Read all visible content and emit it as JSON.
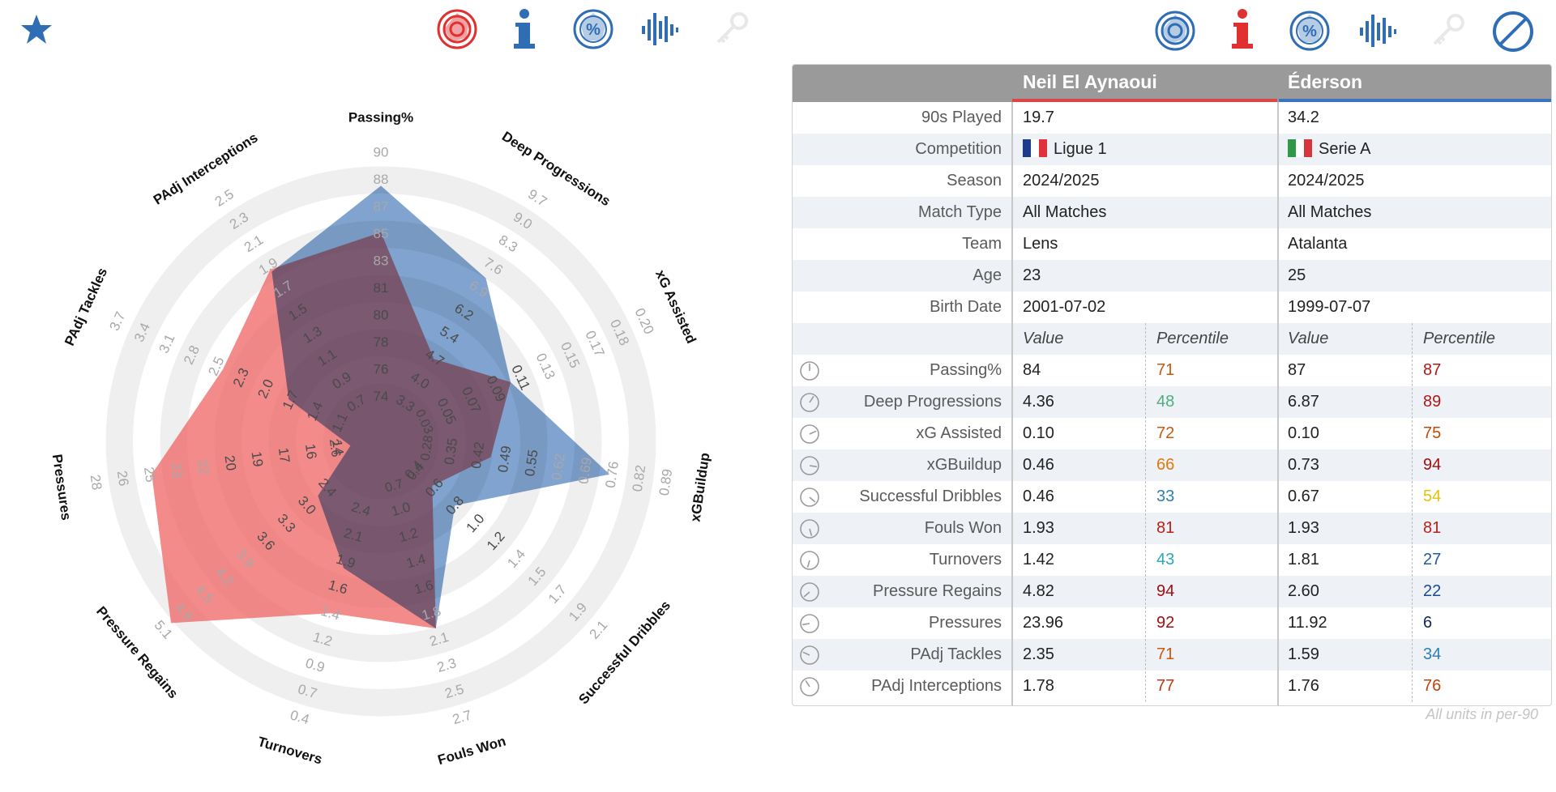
{
  "toolbar": {
    "left": [
      "star-icon",
      "radar-target-icon",
      "info-icon",
      "percent-radar-icon",
      "waveform-icon",
      "key-icon"
    ],
    "right": [
      "radar-target-icon",
      "info-icon",
      "percent-radar-icon",
      "waveform-icon",
      "key-icon",
      "no-entry-icon"
    ]
  },
  "colors": {
    "player1": "#ee5e5e",
    "player2": "#4f7fbd",
    "overlap": "#6f6aa8",
    "header_bg": "#9a9a9a",
    "accent_blue": "#2f6db5",
    "accent_red": "#e03030"
  },
  "table": {
    "players": [
      {
        "name": "Neil El Aynaoui",
        "color": "#e04545"
      },
      {
        "name": "Éderson",
        "color": "#3d72c0"
      }
    ],
    "info_rows": [
      {
        "label": "90s Played",
        "p1": "19.7",
        "p2": "34.2"
      },
      {
        "label": "Competition",
        "p1": "Ligue 1",
        "p2": "Serie A",
        "p1_flag": [
          "#1c3c8c",
          "#ffffff",
          "#e0323c"
        ],
        "p2_flag": [
          "#2e9a48",
          "#ffffff",
          "#d6363c"
        ]
      },
      {
        "label": "Season",
        "p1": "2024/2025",
        "p2": "2024/2025"
      },
      {
        "label": "Match Type",
        "p1": "All Matches",
        "p2": "All Matches"
      },
      {
        "label": "Team",
        "p1": "Lens",
        "p2": "Atalanta"
      },
      {
        "label": "Age",
        "p1": "23",
        "p2": "25"
      },
      {
        "label": "Birth Date",
        "p1": "2001-07-02",
        "p2": "1999-07-07"
      }
    ],
    "sub_header": {
      "value": "Value",
      "percentile": "Percentile"
    },
    "stats": [
      {
        "label": "Passing%",
        "p1v": "84",
        "p1p": "71",
        "p1c": "#c85a0c",
        "p2v": "87",
        "p2p": "87",
        "p2c": "#b01818"
      },
      {
        "label": "Deep Progressions",
        "p1v": "4.36",
        "p1p": "48",
        "p1c": "#4fae7e",
        "p2v": "6.87",
        "p2p": "89",
        "p2c": "#b01818"
      },
      {
        "label": "xG Assisted",
        "p1v": "0.10",
        "p1p": "72",
        "p1c": "#c85a0c",
        "p2v": "0.10",
        "p2p": "75",
        "p2c": "#c04a0c"
      },
      {
        "label": "xGBuildup",
        "p1v": "0.46",
        "p1p": "66",
        "p1c": "#e0780e",
        "p2v": "0.73",
        "p2p": "94",
        "p2c": "#a01010"
      },
      {
        "label": "Successful Dribbles",
        "p1v": "0.46",
        "p1p": "33",
        "p1c": "#2e7fb0",
        "p2v": "0.67",
        "p2p": "54",
        "p2c": "#e4c20c"
      },
      {
        "label": "Fouls Won",
        "p1v": "1.93",
        "p1p": "81",
        "p1c": "#b82018",
        "p2v": "1.93",
        "p2p": "81",
        "p2c": "#b82018"
      },
      {
        "label": "Turnovers",
        "p1v": "1.42",
        "p1p": "43",
        "p1c": "#2aa8b8",
        "p2v": "1.81",
        "p2p": "27",
        "p2c": "#1e5a9c"
      },
      {
        "label": "Pressure Regains",
        "p1v": "4.82",
        "p1p": "94",
        "p1c": "#a01010",
        "p2v": "2.60",
        "p2p": "22",
        "p2c": "#1a4a90"
      },
      {
        "label": "Pressures",
        "p1v": "23.96",
        "p1p": "92",
        "p1c": "#a01010",
        "p2v": "11.92",
        "p2p": "6",
        "p2c": "#14205a"
      },
      {
        "label": "PAdj Tackles",
        "p1v": "2.35",
        "p1p": "71",
        "p1c": "#c85a0c",
        "p2v": "1.59",
        "p2p": "34",
        "p2c": "#2e7fb0"
      },
      {
        "label": "PAdj Interceptions",
        "p1v": "1.78",
        "p1p": "77",
        "p1c": "#bc3a10",
        "p2v": "1.76",
        "p2p": "76",
        "p2c": "#c0400c"
      }
    ],
    "footer_note": "All units in per-90"
  },
  "chart_data": {
    "type": "radar",
    "axes": [
      {
        "name": "Passing%",
        "ticks": [
          "74",
          "76",
          "78",
          "80",
          "81",
          "83",
          "85",
          "87",
          "88",
          "90"
        ],
        "min": 72.5,
        "max": 90
      },
      {
        "name": "Deep Progressions",
        "ticks": [
          "3.3",
          "4.0",
          "4.7",
          "5.4",
          "6.2",
          "6.9",
          "7.6",
          "8.3",
          "9.0",
          "9.7"
        ],
        "min": 2.6,
        "max": 9.7
      },
      {
        "name": "xG Assisted",
        "ticks": [
          "0.05",
          "0.07",
          "0.09",
          "0.11",
          "0.13",
          "0.15",
          "0.17",
          "0.18",
          "0.20"
        ],
        "min": 0.03,
        "max": 0.2
      },
      {
        "name": "xGBuildup",
        "ticks": [
          "0.35",
          "0.42",
          "0.49",
          "0.55",
          "0.62",
          "0.69",
          "0.76",
          "0.82",
          "0.89"
        ],
        "min": 0.28,
        "max": 0.89
      },
      {
        "name": "Successful Dribbles",
        "ticks": [
          "0.4",
          "0.6",
          "0.8",
          "1.0",
          "1.2",
          "1.4",
          "1.5",
          "1.7",
          "1.9",
          "2.1"
        ],
        "min": 0.2,
        "max": 2.1
      },
      {
        "name": "Fouls Won",
        "ticks": [
          "1.0",
          "1.2",
          "1.4",
          "1.6",
          "1.8",
          "2.1",
          "2.3",
          "2.5",
          "2.7"
        ],
        "min": 0.75,
        "max": 2.7
      },
      {
        "name": "Turnovers",
        "ticks": [
          "2.4",
          "2.1",
          "1.9",
          "1.6",
          "1.4",
          "1.2",
          "0.9",
          "0.7",
          "0.4"
        ],
        "min": 2.65,
        "max": 0.4
      },
      {
        "name": "Pressure Regains",
        "ticks": [
          "2.4",
          "3.0",
          "3.3",
          "3.6",
          "3.9",
          "4.2",
          "4.5",
          "4.8",
          "5.1"
        ],
        "min": 2.0,
        "max": 5.1
      },
      {
        "name": "Pressures",
        "ticks": [
          "14",
          "16",
          "17",
          "19",
          "20",
          "22",
          "23",
          "25",
          "26",
          "28"
        ],
        "min": 12.5,
        "max": 28
      },
      {
        "name": "PAdj Tackles",
        "ticks": [
          "1.1",
          "1.4",
          "1.7",
          "2.0",
          "2.3",
          "2.5",
          "2.8",
          "3.1",
          "3.4",
          "3.7"
        ],
        "min": 0.85,
        "max": 3.7
      },
      {
        "name": "PAdj Interceptions",
        "ticks": [
          "0.7",
          "0.9",
          "1.1",
          "1.3",
          "1.5",
          "1.7",
          "1.9",
          "2.1",
          "2.3",
          "2.5"
        ],
        "min": 0.5,
        "max": 2.5
      }
    ],
    "inner_ticks": [
      "2.6",
      "0.7",
      "0.4",
      "0.28",
      "0.03"
    ],
    "series": [
      {
        "name": "Neil El Aynaoui",
        "values": [
          84,
          4.36,
          0.1,
          0.46,
          0.46,
          1.93,
          1.42,
          4.82,
          23.96,
          2.35,
          1.78
        ]
      },
      {
        "name": "Éderson",
        "values": [
          87,
          6.87,
          0.1,
          0.73,
          0.67,
          1.93,
          1.81,
          2.6,
          11.92,
          1.59,
          1.76
        ]
      }
    ],
    "rings": 5,
    "legend": "none"
  }
}
